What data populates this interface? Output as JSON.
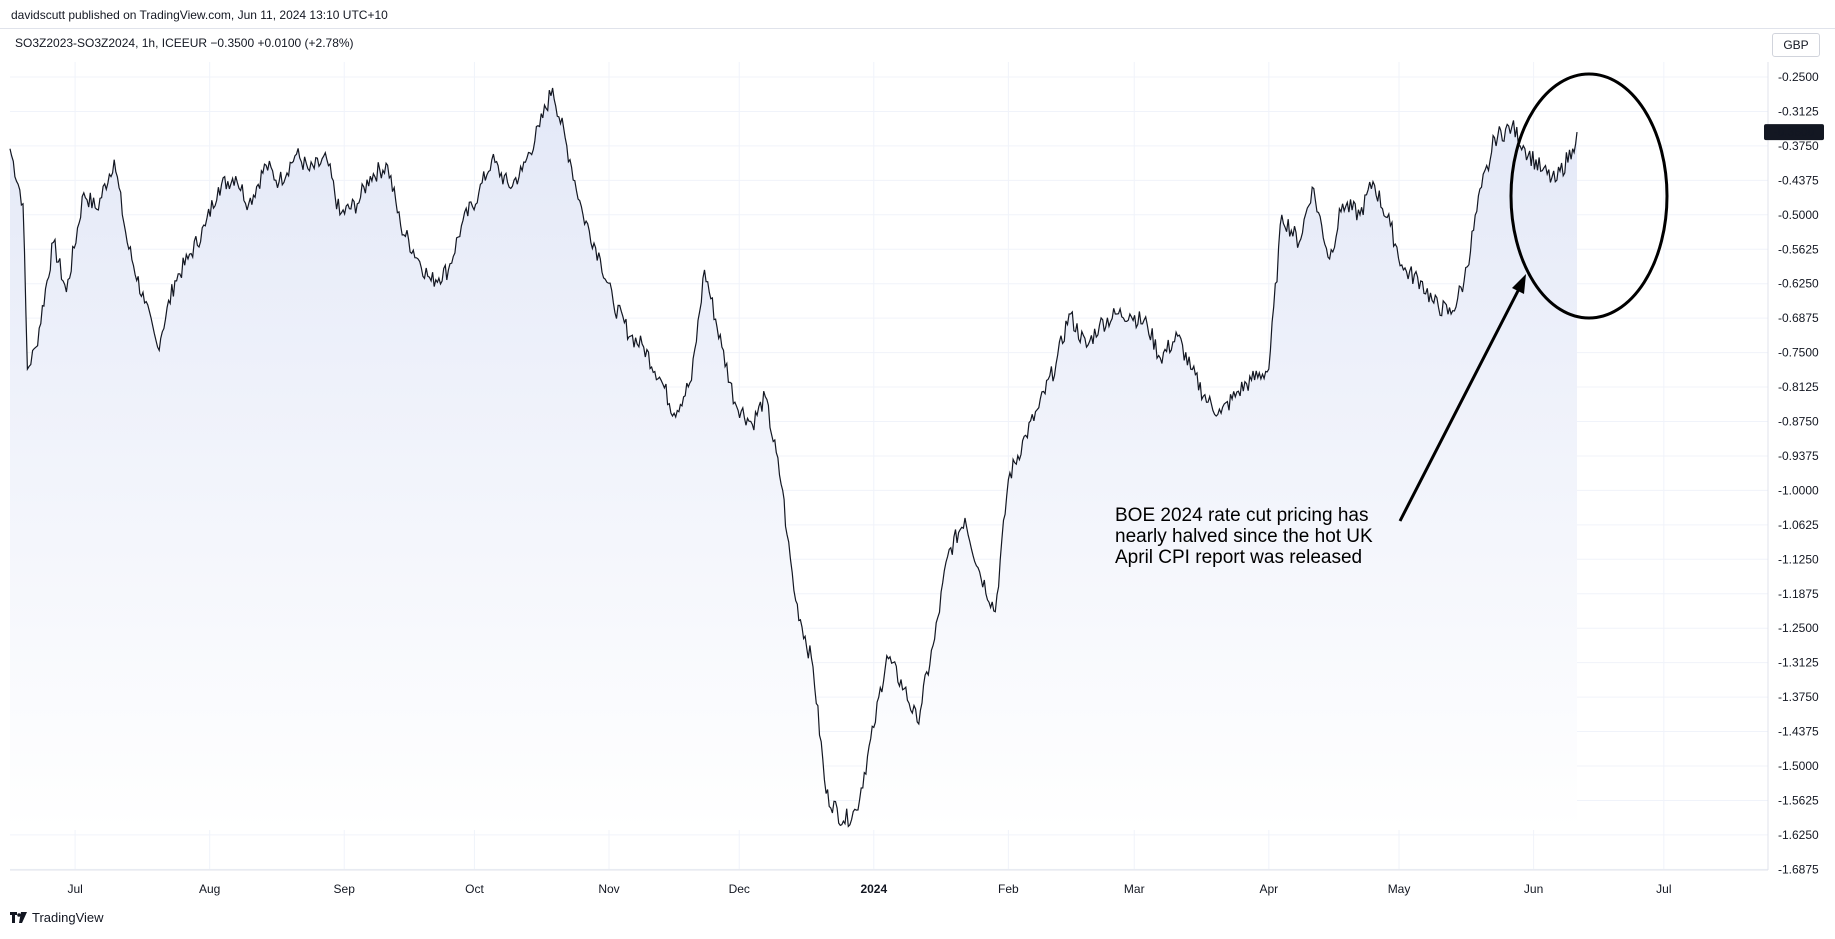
{
  "header": {
    "publish_info": "davidscutt published on TradingView.com, Jun 11, 2024 13:10 UTC+10",
    "symbol_line": "SO3Z2023-SO3Z2024, 1h, ICEEUR  −0.3500  +0.0100 (+2.78%)",
    "currency": "GBP"
  },
  "footer": {
    "brand": "TradingView",
    "logo_icon": "tradingview-logo-icon"
  },
  "colors": {
    "line": "#131722",
    "area_top": "#e3e8f7",
    "area_bottom": "#ffffff",
    "grid": "#f0f3fa",
    "price_tag_bg": "#131722",
    "price_tag_text": "#ffffff"
  },
  "chart_data": {
    "type": "line",
    "grid": true,
    "y_axis_side": "right",
    "ylim": [
      -1.7125,
      -0.225
    ],
    "y_ticks": [
      "-0.2500",
      "-0.3125",
      "-0.3750",
      "-0.4375",
      "-0.5000",
      "-0.5625",
      "-0.6250",
      "-0.6875",
      "-0.7500",
      "-0.8125",
      "-0.8750",
      "-0.9375",
      "-1.0000",
      "-1.0625",
      "-1.1250",
      "-1.1875",
      "-1.2500",
      "-1.3125",
      "-1.3750",
      "-1.4375",
      "-1.5000",
      "-1.5625",
      "-1.6250",
      "-1.6875"
    ],
    "x_ticks": [
      "Jul",
      "Aug",
      "Sep",
      "Oct",
      "Nov",
      "Dec",
      "2024",
      "Feb",
      "Mar",
      "Apr",
      "May",
      "Jun",
      "Jul"
    ],
    "x_range": [
      "2023-06-16",
      "2024-07-25"
    ],
    "last_value_label": "-0.3500",
    "x": [
      "2023-06-16",
      "2023-06-19",
      "2023-06-20",
      "2023-06-22",
      "2023-06-26",
      "2023-06-29",
      "2023-07-03",
      "2023-07-06",
      "2023-07-10",
      "2023-07-13",
      "2023-07-17",
      "2023-07-20",
      "2023-07-24",
      "2023-07-27",
      "2023-07-31",
      "2023-08-03",
      "2023-08-07",
      "2023-08-10",
      "2023-08-14",
      "2023-08-17",
      "2023-08-21",
      "2023-08-24",
      "2023-08-28",
      "2023-08-31",
      "2023-09-04",
      "2023-09-07",
      "2023-09-11",
      "2023-09-14",
      "2023-09-18",
      "2023-09-21",
      "2023-09-25",
      "2023-09-28",
      "2023-10-02",
      "2023-10-05",
      "2023-10-09",
      "2023-10-12",
      "2023-10-16",
      "2023-10-19",
      "2023-10-23",
      "2023-10-26",
      "2023-10-30",
      "2023-11-02",
      "2023-11-06",
      "2023-11-09",
      "2023-11-13",
      "2023-11-16",
      "2023-11-20",
      "2023-11-23",
      "2023-11-27",
      "2023-11-30",
      "2023-12-04",
      "2023-12-07",
      "2023-12-11",
      "2023-12-12",
      "2023-12-14",
      "2023-12-18",
      "2023-12-21",
      "2023-12-25",
      "2023-12-28",
      "2024-01-01",
      "2024-01-04",
      "2024-01-08",
      "2024-01-11",
      "2024-01-15",
      "2024-01-18",
      "2024-01-22",
      "2024-01-25",
      "2024-01-29",
      "2024-02-01",
      "2024-02-05",
      "2024-02-08",
      "2024-02-12",
      "2024-02-15",
      "2024-02-19",
      "2024-02-22",
      "2024-02-26",
      "2024-02-29",
      "2024-03-04",
      "2024-03-07",
      "2024-03-11",
      "2024-03-14",
      "2024-03-18",
      "2024-03-21",
      "2024-03-25",
      "2024-03-28",
      "2024-04-01",
      "2024-04-04",
      "2024-04-08",
      "2024-04-11",
      "2024-04-15",
      "2024-04-18",
      "2024-04-22",
      "2024-04-25",
      "2024-04-29",
      "2024-05-02",
      "2024-05-06",
      "2024-05-09",
      "2024-05-13",
      "2024-05-16",
      "2024-05-20",
      "2024-05-22",
      "2024-05-23",
      "2024-05-27",
      "2024-05-30",
      "2024-06-03",
      "2024-06-06",
      "2024-06-10",
      "2024-06-11"
    ],
    "values": [
      -0.38,
      -0.48,
      -0.78,
      -0.74,
      -0.55,
      -0.64,
      -0.46,
      -0.49,
      -0.4,
      -0.55,
      -0.66,
      -0.74,
      -0.62,
      -0.58,
      -0.52,
      -0.45,
      -0.43,
      -0.48,
      -0.41,
      -0.44,
      -0.39,
      -0.42,
      -0.4,
      -0.5,
      -0.48,
      -0.43,
      -0.41,
      -0.52,
      -0.58,
      -0.62,
      -0.6,
      -0.52,
      -0.46,
      -0.4,
      -0.45,
      -0.42,
      -0.34,
      -0.27,
      -0.4,
      -0.5,
      -0.58,
      -0.66,
      -0.72,
      -0.74,
      -0.8,
      -0.86,
      -0.8,
      -0.6,
      -0.74,
      -0.84,
      -0.88,
      -0.83,
      -1.0,
      -1.08,
      -1.2,
      -1.32,
      -1.55,
      -1.6,
      -1.58,
      -1.43,
      -1.3,
      -1.36,
      -1.42,
      -1.27,
      -1.12,
      -1.05,
      -1.14,
      -1.22,
      -0.98,
      -0.9,
      -0.85,
      -0.77,
      -0.68,
      -0.74,
      -0.7,
      -0.68,
      -0.68,
      -0.7,
      -0.76,
      -0.72,
      -0.78,
      -0.84,
      -0.86,
      -0.82,
      -0.8,
      -0.78,
      -0.5,
      -0.55,
      -0.45,
      -0.58,
      -0.48,
      -0.5,
      -0.44,
      -0.52,
      -0.6,
      -0.62,
      -0.66,
      -0.68,
      -0.62,
      -0.45,
      -0.4,
      -0.36,
      -0.34,
      -0.38,
      -0.42,
      -0.44,
      -0.38,
      -0.35
    ],
    "annotation": {
      "lines": [
        "BOE 2024 rate cut pricing has",
        "nearly halved since the hot UK",
        "April CPI report was released"
      ]
    }
  }
}
